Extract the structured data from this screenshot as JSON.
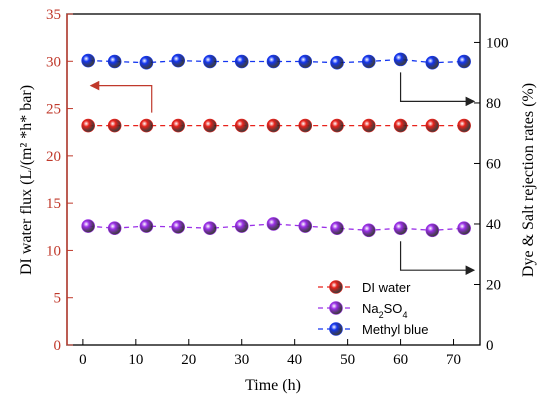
{
  "chart_data": {
    "type": "scatter",
    "xlabel": "Time (h)",
    "ylabel_left": "DI water flux (L/(m² *h* bar)",
    "ylabel_right": "Dye & Salt rejection rates (%)",
    "x_ticks": [
      0,
      10,
      20,
      30,
      40,
      50,
      60,
      70
    ],
    "y_left_ticks": [
      0,
      5,
      10,
      15,
      20,
      25,
      30,
      35
    ],
    "y_right_ticks": [
      0,
      20,
      40,
      60,
      80,
      100
    ],
    "xlim": [
      -3,
      75
    ],
    "ylim_left": [
      0,
      35
    ],
    "ylim_right": [
      0,
      109.4
    ],
    "x": [
      1,
      6,
      12,
      18,
      24,
      30,
      36,
      42,
      48,
      54,
      60,
      66,
      72
    ],
    "series": [
      {
        "name": "DI water",
        "axis": "left",
        "color": "#e8231c",
        "values": [
          23.2,
          23.2,
          23.2,
          23.2,
          23.2,
          23.2,
          23.2,
          23.2,
          23.2,
          23.2,
          23.2,
          23.2,
          23.2
        ]
      },
      {
        "name": "Na2SO4",
        "axis": "right",
        "color": "#9b30e8",
        "values": [
          39.3,
          38.6,
          39.3,
          39.0,
          38.6,
          39.3,
          40.0,
          39.3,
          38.6,
          37.9,
          38.6,
          37.9,
          38.6
        ]
      },
      {
        "name": "Methyl blue",
        "axis": "right",
        "color": "#1436f0",
        "values": [
          94.0,
          93.7,
          93.3,
          94.0,
          93.7,
          93.7,
          93.7,
          93.7,
          93.3,
          93.7,
          94.4,
          93.3,
          93.7
        ]
      }
    ],
    "legend": {
      "placement": "bottom-right",
      "entries": [
        {
          "label_main": "DI water",
          "label_sub": "",
          "label_tail": ""
        },
        {
          "label_main": "Na",
          "label_sub": "2",
          "label_tail": "SO",
          "label_sub2": "4"
        },
        {
          "label_main": "Methyl blue",
          "label_sub": "",
          "label_tail": ""
        }
      ]
    },
    "annotations": [
      {
        "type": "arrow-left",
        "points_to": "left-axis",
        "from_x": 13,
        "at_y_left": 23.2
      },
      {
        "type": "arrow-right",
        "points_to": "right-axis",
        "from_x": 60,
        "at_y_right": 94.4
      },
      {
        "type": "arrow-right",
        "points_to": "right-axis",
        "from_x": 60,
        "at_y_right": 38.6
      }
    ],
    "colors": {
      "left_axis": "#c0392b",
      "annotation": "#c0392b"
    }
  }
}
